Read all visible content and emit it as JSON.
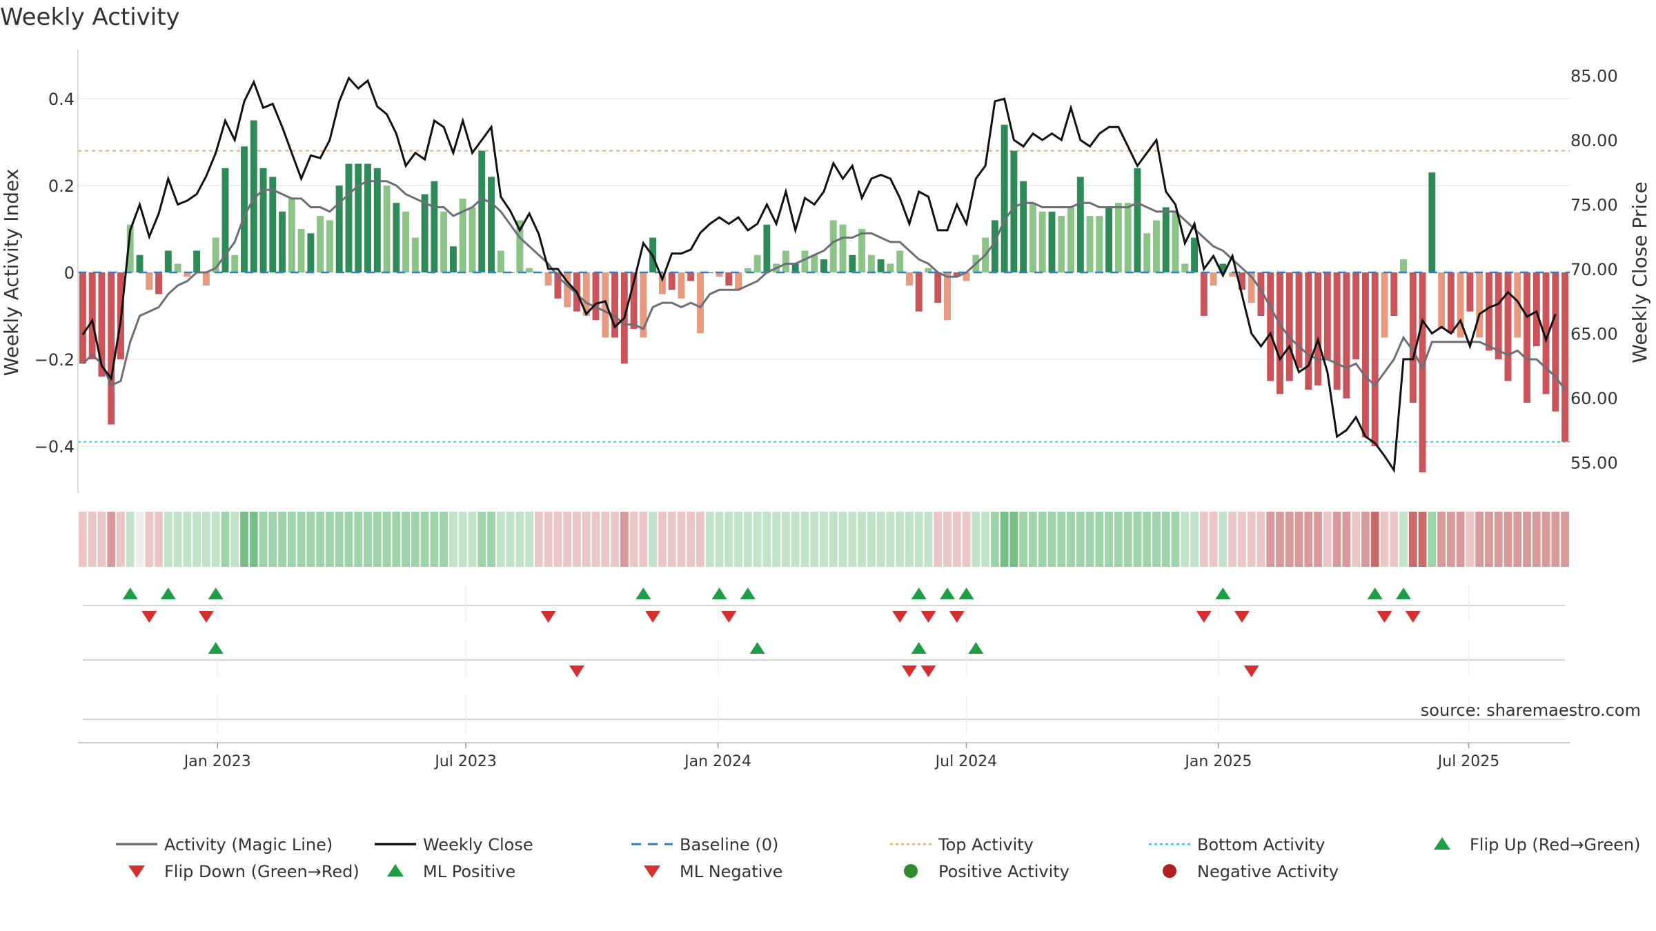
{
  "chart_data": {
    "type": "bar",
    "title": "Weekly Activity",
    "ylabel": "Weekly Activity Index",
    "y2label": "Weekly Close Price",
    "ylim": [
      -0.5,
      0.5
    ],
    "y2lim": [
      52,
      86
    ],
    "yticks": [
      0.4,
      0.2,
      0,
      -0.2,
      -0.4
    ],
    "yticklabels": [
      "0.4",
      "0.2",
      "0",
      "−0.2",
      "−0.4"
    ],
    "y2ticks": [
      85,
      80,
      75,
      70,
      65,
      60,
      55
    ],
    "y2ticklabels": [
      "85.00",
      "80.00",
      "75.00",
      "70.00",
      "65.00",
      "60.00",
      "55.00"
    ],
    "xrange_weeks": [
      0,
      155
    ],
    "xticks": [
      {
        "label": "Jan 2023",
        "week": 14.5
      },
      {
        "label": "Jul 2023",
        "week": 40.3
      },
      {
        "label": "Jan 2024",
        "week": 66.5
      },
      {
        "label": "Jul 2024",
        "week": 92.3
      },
      {
        "label": "Jan 2025",
        "week": 118.5
      },
      {
        "label": "Jul 2025",
        "week": 144.5
      }
    ],
    "top_activity": 0.28,
    "bottom_activity": -0.39,
    "source": "source: sharemaestro.com",
    "activity": [
      -0.21,
      -0.2,
      -0.24,
      -0.35,
      -0.2,
      0.11,
      0.04,
      -0.04,
      -0.05,
      0.05,
      0.02,
      -0.01,
      0.05,
      -0.03,
      0.08,
      0.24,
      0.04,
      0.29,
      0.35,
      0.24,
      0.22,
      0.14,
      0.17,
      0.1,
      0.09,
      0.13,
      0.12,
      0.2,
      0.25,
      0.25,
      0.25,
      0.24,
      0.2,
      0.16,
      0.14,
      0.08,
      0.18,
      0.21,
      0.14,
      0.06,
      0.17,
      0.15,
      0.28,
      0.22,
      0.05,
      0.0,
      0.12,
      0.01,
      0.0,
      -0.03,
      -0.06,
      -0.08,
      -0.09,
      -0.1,
      -0.11,
      -0.15,
      -0.15,
      -0.21,
      -0.13,
      -0.15,
      0.08,
      -0.05,
      -0.04,
      -0.06,
      -0.02,
      -0.14,
      0.0,
      -0.01,
      -0.03,
      -0.04,
      0.01,
      0.04,
      0.11,
      0.02,
      0.05,
      0.02,
      0.05,
      0.04,
      0.03,
      0.12,
      0.11,
      0.04,
      0.1,
      0.04,
      0.03,
      0.02,
      0.05,
      -0.03,
      -0.09,
      0.01,
      -0.07,
      -0.11,
      -0.01,
      -0.02,
      0.04,
      0.08,
      0.12,
      0.34,
      0.28,
      0.21,
      0.16,
      0.14,
      0.14,
      0.13,
      0.15,
      0.22,
      0.13,
      0.13,
      0.15,
      0.16,
      0.16,
      0.24,
      0.09,
      0.12,
      0.15,
      0.14,
      0.02,
      0.08,
      -0.1,
      -0.03,
      0.02,
      -0.01,
      -0.04,
      -0.07,
      -0.1,
      -0.25,
      -0.28,
      -0.25,
      -0.22,
      -0.27,
      -0.26,
      -0.2,
      -0.27,
      -0.29,
      -0.2,
      -0.38,
      -0.4,
      -0.15,
      -0.1,
      0.03,
      -0.3,
      -0.46,
      0.23,
      -0.13,
      -0.14,
      -0.15,
      -0.09,
      -0.15,
      -0.18,
      -0.2,
      -0.25,
      -0.15,
      -0.3,
      -0.17,
      -0.28,
      -0.32,
      -0.39
    ],
    "magic_line": [
      -0.21,
      -0.19,
      -0.21,
      -0.26,
      -0.25,
      -0.16,
      -0.1,
      -0.09,
      -0.08,
      -0.05,
      -0.03,
      -0.02,
      -0.0,
      0.0,
      0.01,
      0.04,
      0.07,
      0.13,
      0.17,
      0.19,
      0.19,
      0.18,
      0.17,
      0.17,
      0.15,
      0.15,
      0.14,
      0.16,
      0.18,
      0.2,
      0.21,
      0.21,
      0.21,
      0.2,
      0.18,
      0.17,
      0.16,
      0.15,
      0.15,
      0.13,
      0.14,
      0.15,
      0.17,
      0.16,
      0.14,
      0.11,
      0.08,
      0.06,
      0.04,
      0.02,
      -0.01,
      -0.03,
      -0.05,
      -0.07,
      -0.08,
      -0.09,
      -0.1,
      -0.12,
      -0.12,
      -0.13,
      -0.08,
      -0.07,
      -0.07,
      -0.08,
      -0.07,
      -0.08,
      -0.05,
      -0.04,
      -0.04,
      -0.04,
      -0.03,
      -0.02,
      0.0,
      0.01,
      0.02,
      0.02,
      0.03,
      0.04,
      0.05,
      0.07,
      0.08,
      0.08,
      0.09,
      0.09,
      0.08,
      0.07,
      0.07,
      0.05,
      0.03,
      0.02,
      0.0,
      -0.01,
      -0.01,
      0.0,
      0.02,
      0.04,
      0.07,
      0.12,
      0.15,
      0.16,
      0.16,
      0.15,
      0.15,
      0.15,
      0.15,
      0.16,
      0.16,
      0.15,
      0.15,
      0.15,
      0.15,
      0.16,
      0.15,
      0.14,
      0.14,
      0.14,
      0.12,
      0.1,
      0.08,
      0.06,
      0.05,
      0.03,
      0.01,
      -0.01,
      -0.04,
      -0.08,
      -0.12,
      -0.15,
      -0.17,
      -0.19,
      -0.2,
      -0.2,
      -0.21,
      -0.22,
      -0.21,
      -0.24,
      -0.26,
      -0.23,
      -0.2,
      -0.15,
      -0.18,
      -0.22,
      -0.16,
      -0.16,
      -0.16,
      -0.16,
      -0.16,
      -0.16,
      -0.17,
      -0.18,
      -0.19,
      -0.18,
      -0.2,
      -0.2,
      -0.22,
      -0.24,
      -0.27
    ],
    "weekly_close": [
      64.9,
      66.0,
      62.5,
      61.5,
      66.0,
      73.0,
      75.0,
      72.5,
      74.3,
      77.0,
      75.0,
      75.3,
      75.8,
      77.2,
      79.0,
      81.5,
      80.0,
      83.0,
      84.5,
      82.5,
      82.8,
      81.0,
      79.0,
      77.0,
      78.8,
      78.6,
      80.0,
      83.0,
      84.8,
      84.0,
      84.6,
      82.6,
      82.0,
      80.5,
      78.0,
      79.0,
      78.5,
      81.5,
      81.0,
      79.0,
      81.5,
      79.0,
      80.0,
      81.0,
      75.6,
      74.5,
      73.0,
      74.3,
      72.7,
      70.0,
      70.0,
      69.0,
      68.2,
      66.5,
      67.3,
      67.5,
      65.5,
      66.2,
      69.0,
      72.0,
      71.0,
      69.2,
      71.2,
      71.2,
      71.5,
      72.8,
      73.5,
      74.0,
      73.5,
      74.0,
      73.0,
      73.5,
      75.0,
      73.5,
      76.0,
      73.0,
      75.5,
      75.0,
      76.0,
      78.2,
      77.0,
      78.0,
      75.5,
      77.0,
      77.3,
      77.0,
      75.5,
      73.5,
      76.0,
      75.6,
      73.0,
      73.0,
      75.0,
      73.5,
      77.0,
      78.0,
      83.0,
      83.2,
      80.0,
      79.5,
      80.5,
      80.0,
      80.5,
      80.0,
      82.5,
      80.0,
      79.5,
      80.5,
      81.0,
      81.0,
      79.5,
      78.0,
      79.0,
      80.0,
      76.0,
      75.0,
      72.0,
      73.5,
      70.0,
      71.0,
      69.5,
      71.0,
      68.0,
      65.0,
      64.0,
      65.0,
      63.0,
      64.0,
      62.0,
      62.5,
      64.5,
      62.0,
      57.0,
      57.5,
      58.5,
      57.0,
      56.5,
      55.5,
      54.4,
      63.0,
      63.0,
      66.0,
      65.0,
      65.5,
      65.0,
      66.0,
      64.0,
      66.5,
      67.0,
      67.3,
      68.2,
      67.5,
      66.3,
      66.7,
      64.5,
      66.5
    ],
    "strip_scores": [
      -1,
      -1,
      -1,
      -2,
      -1,
      1,
      0,
      -1,
      -1,
      1,
      1,
      1,
      1,
      1,
      1,
      2,
      1,
      3,
      3,
      2,
      2,
      2,
      2,
      2,
      2,
      2,
      2,
      2,
      2,
      2,
      2,
      2,
      2,
      2,
      2,
      2,
      2,
      2,
      2,
      1,
      1,
      1,
      2,
      2,
      1,
      1,
      1,
      1,
      -1,
      -1,
      -1,
      -1,
      -1,
      -1,
      -1,
      -1,
      -1,
      -2,
      -1,
      -1,
      1,
      -1,
      -1,
      -1,
      -1,
      -1,
      1,
      1,
      1,
      1,
      1,
      1,
      1,
      1,
      1,
      1,
      1,
      1,
      1,
      1,
      1,
      1,
      1,
      1,
      1,
      1,
      1,
      1,
      1,
      1,
      -1,
      -1,
      -1,
      -1,
      1,
      1,
      2,
      3,
      3,
      2,
      2,
      2,
      2,
      2,
      2,
      2,
      2,
      2,
      2,
      2,
      2,
      2,
      2,
      2,
      2,
      2,
      1,
      1,
      -1,
      -1,
      1,
      -1,
      -1,
      -1,
      -1,
      -2,
      -2,
      -2,
      -2,
      -2,
      -2,
      -1,
      -2,
      -2,
      -1,
      -2,
      -3,
      -1,
      -1,
      1,
      -3,
      -3,
      2,
      -2,
      -2,
      -2,
      -1,
      -2,
      -2,
      -2,
      -2,
      -2,
      -2,
      -2,
      -2,
      -2,
      -2
    ],
    "markers": {
      "flip_up": [
        5,
        9,
        14,
        59,
        67,
        70,
        88,
        91,
        93,
        120,
        136,
        139
      ],
      "flip_down": [
        7,
        13,
        49,
        60,
        68,
        86,
        89,
        92,
        118,
        122,
        137,
        140
      ],
      "ml_positive": [
        14,
        71,
        88,
        94
      ],
      "ml_negative": [
        52,
        87,
        89,
        123
      ]
    },
    "legend": [
      {
        "label": "Activity (Magic Line)",
        "kind": "line",
        "color": "#6b6f78"
      },
      {
        "label": "Weekly Close",
        "kind": "line",
        "color": "#111111"
      },
      {
        "label": "Baseline (0)",
        "kind": "dashed",
        "color": "#2f7fc1"
      },
      {
        "label": "Top Activity",
        "kind": "dotted",
        "color": "#f0a868"
      },
      {
        "label": "Bottom Activity",
        "kind": "dotted",
        "color": "#35c9d6"
      },
      {
        "label": "Flip Up (Red→Green)",
        "kind": "tri-up",
        "color": "#1f9e45"
      },
      {
        "label": "Flip Down (Green→Red)",
        "kind": "tri-down",
        "color": "#d62f2f"
      },
      {
        "label": "ML Positive",
        "kind": "tri-up",
        "color": "#1f9e45"
      },
      {
        "label": "ML Negative",
        "kind": "tri-down",
        "color": "#d62f2f"
      },
      {
        "label": "Positive Activity",
        "kind": "dot",
        "color": "#2e8b2e"
      },
      {
        "label": "Negative Activity",
        "kind": "dot",
        "color": "#b02020"
      }
    ]
  },
  "colors": {
    "bar_pos_strong": "#2e8b57",
    "bar_pos_weak": "#8cc488",
    "bar_neg_strong": "#c9545a",
    "bar_neg_weak": "#e89a80"
  }
}
